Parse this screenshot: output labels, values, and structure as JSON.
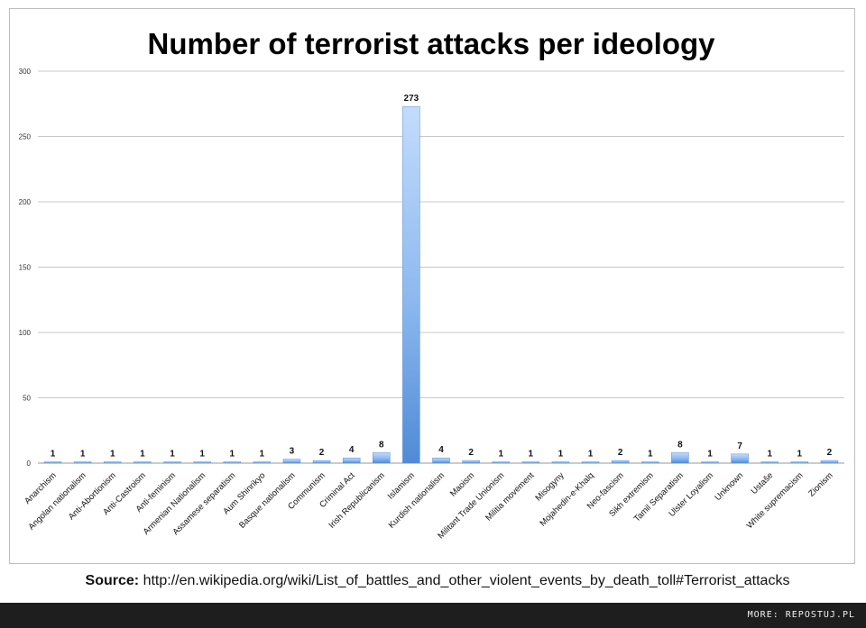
{
  "chart_data": {
    "type": "bar",
    "title": "Number of terrorist attacks per ideology",
    "xlabel": "",
    "ylabel": "",
    "ylim": [
      0,
      300
    ],
    "yticks": [
      0,
      50,
      100,
      150,
      200,
      250,
      300
    ],
    "grid": true,
    "legend": "none",
    "categories": [
      "Anarchism",
      "Angolan nationalism",
      "Anti-Abortionism",
      "Anti-Castroism",
      "Anti-feminism",
      "Armenian Nationalism",
      "Assamese separatism",
      "Aum Shinrikyo",
      "Basque nationalism",
      "Communism",
      "Criminal Act",
      "Irish Republicanism",
      "Islamism",
      "Kurdish nationalism",
      "Maoism",
      "Militant Trade Unionism",
      "Militia movement",
      "Misogyny",
      "Mojahedin-e-Khalq",
      "Neo-fascism",
      "Sikh extremism",
      "Tamil Separatism",
      "Ulster Loyalism",
      "Unknown",
      "Ustaše",
      "White supremacism",
      "Zionism"
    ],
    "values": [
      1,
      1,
      1,
      1,
      1,
      1,
      1,
      1,
      3,
      2,
      4,
      8,
      273,
      4,
      2,
      1,
      1,
      1,
      1,
      2,
      1,
      8,
      1,
      7,
      1,
      1,
      2
    ],
    "bar_color": "#6fa2e2"
  },
  "source": {
    "label": "Source:",
    "url": "http://en.wikipedia.org/wiki/List_of_battles_and_other_violent_events_by_death_toll#Terrorist_attacks"
  },
  "footer": {
    "text": "MORE: REPOSTUJ.PL"
  }
}
